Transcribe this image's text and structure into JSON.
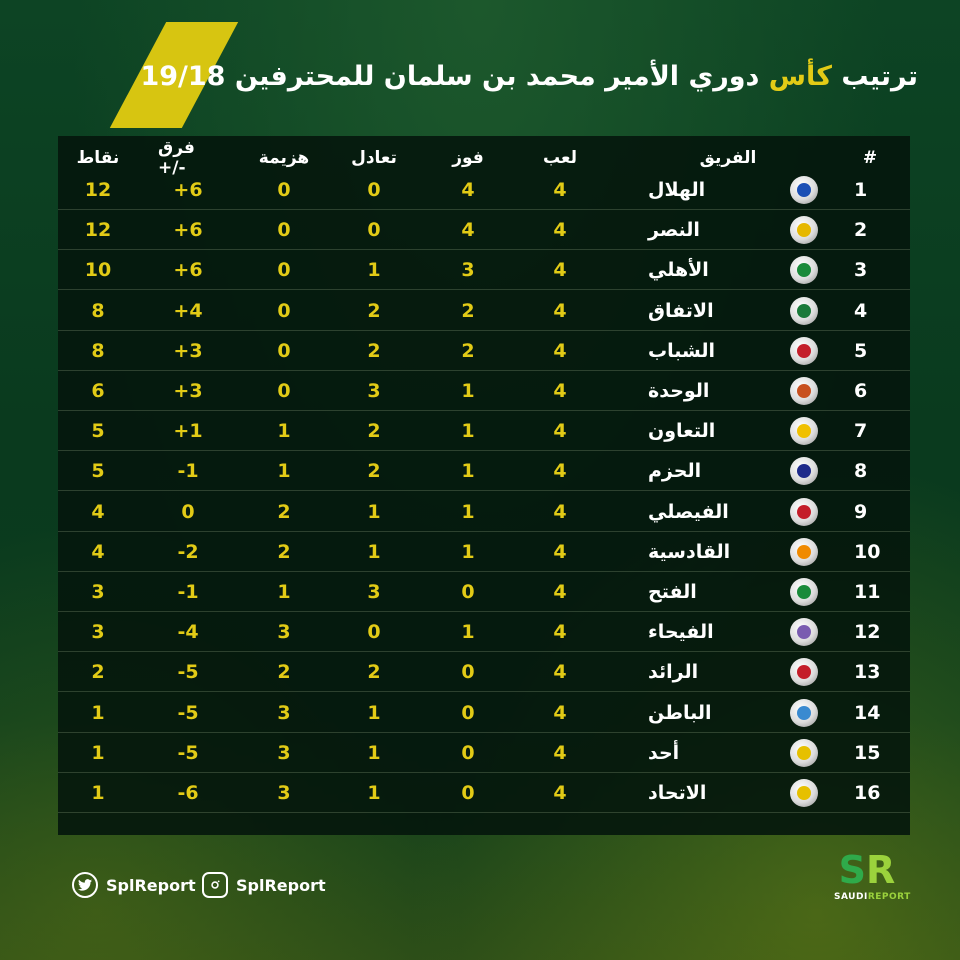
{
  "title": {
    "part1": "ترتيب",
    "accent": "كأس",
    "part2": "دوري الأمير محمد بن سلمان للمحترفين",
    "season": "19/18"
  },
  "table": {
    "headers": {
      "rank": "#",
      "team": "الفريق",
      "played": "لعب",
      "won": "فوز",
      "draw": "تعادل",
      "lost": "هزيمة",
      "diff": "فرق +/-",
      "pts": "نقاط"
    },
    "rows": [
      {
        "rank": "1",
        "team": "الهلال",
        "played": "4",
        "won": "4",
        "draw": "0",
        "lost": "0",
        "diff": "+6",
        "pts": "12"
      },
      {
        "rank": "2",
        "team": "النصر",
        "played": "4",
        "won": "4",
        "draw": "0",
        "lost": "0",
        "diff": "+6",
        "pts": "12"
      },
      {
        "rank": "3",
        "team": "الأهلي",
        "played": "4",
        "won": "3",
        "draw": "1",
        "lost": "0",
        "diff": "+6",
        "pts": "10"
      },
      {
        "rank": "4",
        "team": "الاتفاق",
        "played": "4",
        "won": "2",
        "draw": "2",
        "lost": "0",
        "diff": "+4",
        "pts": "8"
      },
      {
        "rank": "5",
        "team": "الشباب",
        "played": "4",
        "won": "2",
        "draw": "2",
        "lost": "0",
        "diff": "+3",
        "pts": "8"
      },
      {
        "rank": "6",
        "team": "الوحدة",
        "played": "4",
        "won": "1",
        "draw": "3",
        "lost": "0",
        "diff": "+3",
        "pts": "6"
      },
      {
        "rank": "7",
        "team": "التعاون",
        "played": "4",
        "won": "1",
        "draw": "2",
        "lost": "1",
        "diff": "+1",
        "pts": "5"
      },
      {
        "rank": "8",
        "team": "الحزم",
        "played": "4",
        "won": "1",
        "draw": "2",
        "lost": "1",
        "diff": "-1",
        "pts": "5"
      },
      {
        "rank": "9",
        "team": "الفيصلي",
        "played": "4",
        "won": "1",
        "draw": "1",
        "lost": "2",
        "diff": "0",
        "pts": "4"
      },
      {
        "rank": "10",
        "team": "القادسية",
        "played": "4",
        "won": "1",
        "draw": "1",
        "lost": "2",
        "diff": "-2",
        "pts": "4"
      },
      {
        "rank": "11",
        "team": "الفتح",
        "played": "4",
        "won": "0",
        "draw": "3",
        "lost": "1",
        "diff": "-1",
        "pts": "3"
      },
      {
        "rank": "12",
        "team": "الفيحاء",
        "played": "4",
        "won": "1",
        "draw": "0",
        "lost": "3",
        "diff": "-4",
        "pts": "3"
      },
      {
        "rank": "13",
        "team": "الرائد",
        "played": "4",
        "won": "0",
        "draw": "2",
        "lost": "2",
        "diff": "-5",
        "pts": "2"
      },
      {
        "rank": "14",
        "team": "الباطن",
        "played": "4",
        "won": "0",
        "draw": "1",
        "lost": "3",
        "diff": "-5",
        "pts": "1"
      },
      {
        "rank": "15",
        "team": "أحد",
        "played": "4",
        "won": "0",
        "draw": "1",
        "lost": "3",
        "diff": "-5",
        "pts": "1"
      },
      {
        "rank": "16",
        "team": "الاتحاد",
        "played": "4",
        "won": "0",
        "draw": "1",
        "lost": "3",
        "diff": "-6",
        "pts": "1"
      }
    ],
    "logo_colors": [
      "#1b4fb5",
      "#e6b800",
      "#1a8a3a",
      "#1a7a3a",
      "#c41e2a",
      "#c8501e",
      "#f0c000",
      "#1e2a8a",
      "#c41e2a",
      "#f08a00",
      "#1a8a3a",
      "#7a5cb0",
      "#c41e2a",
      "#3a8ad0",
      "#e6c000",
      "#e6c000"
    ]
  },
  "footer": {
    "twitter_icon": "twitter-icon",
    "twitter_handle": "SplReport",
    "instagram_icon": "instagram-icon",
    "instagram_handle": "SplReport"
  },
  "brand": {
    "mark_s": "S",
    "mark_r": "R",
    "name_a": "SAUDI",
    "name_b": "REPORT"
  },
  "colors": {
    "accent_yellow": "#e2cb16",
    "stripe_yellow": "#d7c511",
    "background_green": "#0d4424"
  }
}
